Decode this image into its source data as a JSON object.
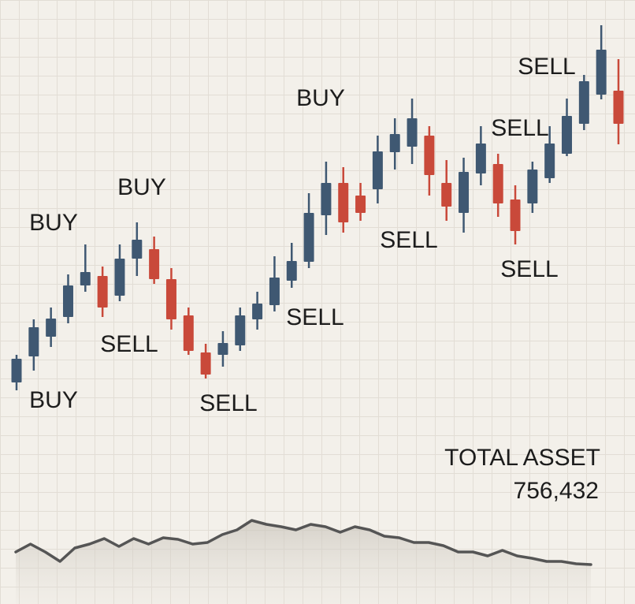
{
  "chart_data": [
    {
      "type": "candlestick",
      "ylim": [
        0,
        600
      ],
      "up_color": "#3f5872",
      "down_color": "#c9493a",
      "open": [
        115,
        148,
        173,
        198,
        238,
        250,
        225,
        272,
        284,
        246,
        200,
        153,
        150,
        162,
        195,
        213,
        244,
        268,
        327,
        368,
        352,
        360,
        407,
        414,
        428,
        368,
        330,
        380,
        392,
        347,
        342,
        374,
        405,
        443,
        480,
        485
      ],
      "close": [
        145,
        185,
        196,
        238,
        255,
        210,
        272,
        296,
        246,
        195,
        155,
        125,
        165,
        200,
        215,
        248,
        269,
        330,
        368,
        318,
        330,
        408,
        430,
        450,
        378,
        338,
        382,
        418,
        342,
        307,
        385,
        418,
        453,
        497,
        537,
        443
      ],
      "high": [
        150,
        195,
        210,
        252,
        290,
        262,
        290,
        318,
        300,
        260,
        210,
        164,
        180,
        210,
        230,
        275,
        292,
        355,
        395,
        388,
        368,
        428,
        450,
        475,
        440,
        397,
        400,
        440,
        405,
        365,
        395,
        440,
        475,
        505,
        568,
        525
      ],
      "low": [
        105,
        130,
        160,
        190,
        230,
        198,
        218,
        250,
        240,
        182,
        150,
        120,
        135,
        155,
        182,
        205,
        235,
        260,
        302,
        305,
        320,
        342,
        385,
        392,
        352,
        320,
        305,
        365,
        325,
        290,
        330,
        368,
        402,
        435,
        474,
        417
      ],
      "annotations": [
        "BUY",
        "BUY",
        "BUY",
        "BUY",
        "SELL",
        "SELL",
        "SELL",
        "SELL",
        "SELL",
        "SELL",
        "SELL"
      ]
    },
    {
      "type": "line",
      "ylim": [
        60,
        160
      ],
      "color": "#555555",
      "values": [
        100,
        110,
        100,
        88,
        105,
        110,
        117,
        107,
        117,
        110,
        118,
        116,
        110,
        112,
        122,
        128,
        140,
        135,
        132,
        128,
        135,
        132,
        125,
        132,
        128,
        120,
        118,
        112,
        112,
        108,
        100,
        100,
        95,
        102,
        95,
        92,
        88,
        88,
        85,
        84
      ]
    }
  ],
  "total_asset": {
    "label": "TOTAL ASSET",
    "value": "756,432"
  }
}
